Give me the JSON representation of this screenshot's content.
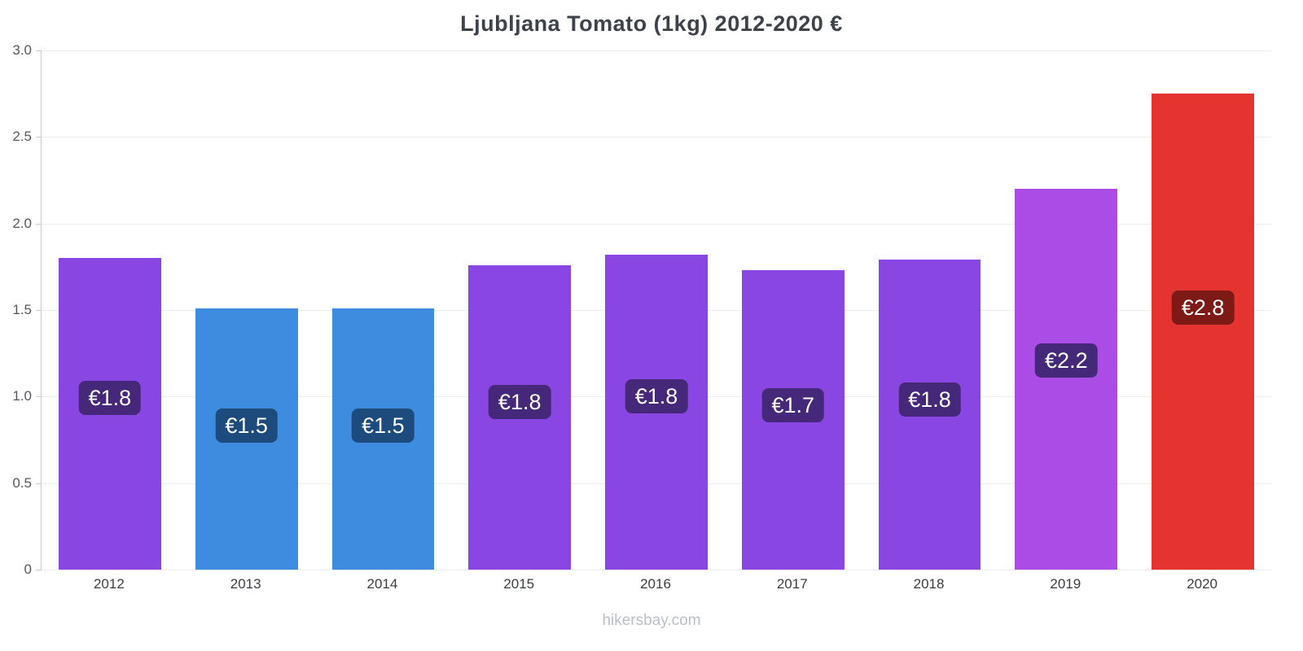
{
  "title": "Ljubljana Tomato (1kg) 2012-2020 €",
  "footer": "hikersbay.com",
  "chart_data": {
    "type": "bar",
    "title": "Ljubljana Tomato (1kg) 2012-2020 €",
    "categories": [
      "2012",
      "2013",
      "2014",
      "2015",
      "2016",
      "2017",
      "2018",
      "2019",
      "2020"
    ],
    "values": [
      1.8,
      1.51,
      1.51,
      1.76,
      1.82,
      1.73,
      1.79,
      2.2,
      2.75
    ],
    "labels": [
      "€1.8",
      "€1.5",
      "€1.5",
      "€1.8",
      "€1.8",
      "€1.7",
      "€1.8",
      "€2.2",
      "€2.8"
    ],
    "bar_colors": [
      "#8a46e3",
      "#3d8ce0",
      "#3d8ce0",
      "#8a46e3",
      "#8a46e3",
      "#8a46e3",
      "#8a46e3",
      "#ab4ce6",
      "#e5332f"
    ],
    "label_bg_colors": [
      "#452879",
      "#1d4b7d",
      "#1d4b7d",
      "#452879",
      "#452879",
      "#452879",
      "#452879",
      "#452879",
      "#7e1a15"
    ],
    "xlabel": "",
    "ylabel": "",
    "ylim": [
      0,
      3.0
    ],
    "yticks": [
      0,
      0.5,
      1.0,
      1.5,
      2.0,
      2.5,
      3.0
    ],
    "ytick_labels": [
      "0",
      "0.5",
      "1.0",
      "1.5",
      "2.0",
      "2.5",
      "3.0"
    ],
    "grid": true,
    "legend": false
  }
}
